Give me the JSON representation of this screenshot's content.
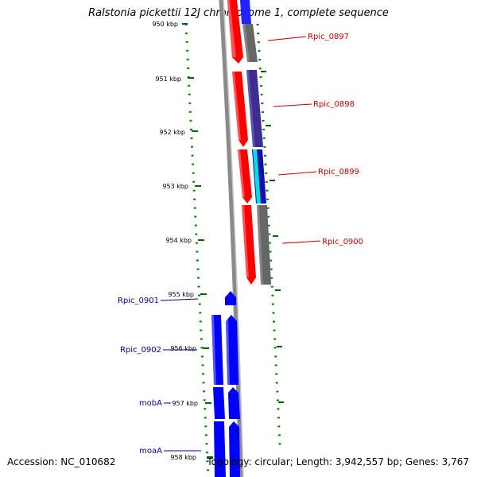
{
  "title": "Ralstonia pickettii 12J chromosome 1, complete sequence",
  "footer": {
    "accession": "Accession: NC_010682",
    "summary": "Topology: circular; Length: 3,942,557 bp; Genes: 3,767"
  },
  "ticks": [
    "950 kbp",
    "951 kbp",
    "952 kbp",
    "953 kbp",
    "954 kbp",
    "955 kbp",
    "956 kbp",
    "957 kbp",
    "958 kbp"
  ],
  "genes_top": [
    "Rpic_0897",
    "Rpic_0898",
    "Rpic_0899",
    "Rpic_0900"
  ],
  "genes_bottom": [
    "Rpic_0901",
    "Rpic_0902",
    "mobA",
    "moaA"
  ],
  "colors": {
    "forward_gene": "#ff0000",
    "reverse_gene": "#0000ff",
    "label_top": "#cc0000",
    "label_bottom": "#000099",
    "backbone": "#808080",
    "dots": "#008000"
  }
}
